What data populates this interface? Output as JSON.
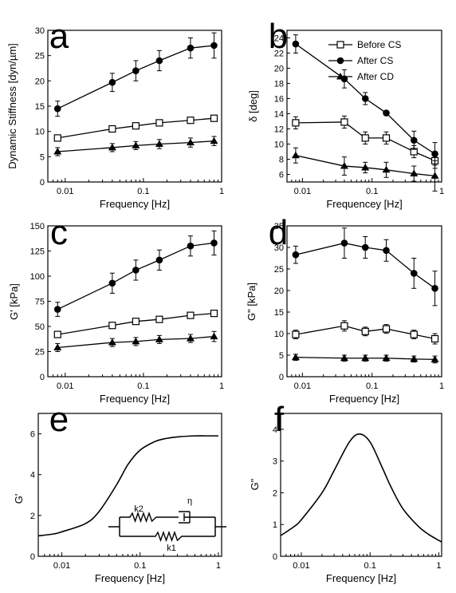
{
  "chart_data": [
    {
      "panel": "a",
      "type": "line",
      "xlabel": "Frequency [Hz]",
      "ylabel": "Dynamic Stiffness [dyn/µm]",
      "xscale": "log",
      "xlim": [
        0.006,
        1.0
      ],
      "ylim": [
        0,
        30
      ],
      "xticks": [
        0.01,
        0.1,
        1
      ],
      "xticklabels": [
        "0.01",
        "0.1",
        "1"
      ],
      "yticks": [
        0,
        5,
        10,
        15,
        20,
        25,
        30
      ],
      "yticklabels": [
        "0",
        "5",
        "10",
        "15",
        "20",
        "25",
        "30"
      ],
      "x": [
        0.008,
        0.04,
        0.08,
        0.16,
        0.4,
        0.8
      ],
      "series": [
        {
          "name": "Before CS",
          "marker": "open-square",
          "values": [
            8.7,
            10.5,
            11.1,
            11.7,
            12.2,
            12.6
          ],
          "err": [
            0.5,
            0.5,
            0.5,
            0.5,
            0.5,
            0.5
          ]
        },
        {
          "name": "After CS",
          "marker": "filled-circle",
          "values": [
            14.5,
            19.7,
            22.0,
            24.0,
            26.5,
            27.0
          ],
          "err": [
            1.5,
            1.8,
            2.0,
            2.0,
            2.0,
            2.5
          ]
        },
        {
          "name": "After CD",
          "marker": "filled-triangle",
          "values": [
            6.0,
            6.8,
            7.2,
            7.5,
            7.8,
            8.1
          ],
          "err": [
            0.8,
            0.8,
            0.8,
            0.9,
            0.9,
            0.9
          ]
        }
      ]
    },
    {
      "panel": "b",
      "type": "line",
      "xlabel": "Frequencey [Hz]",
      "ylabel": "δ [deg]",
      "xscale": "log",
      "xlim": [
        0.006,
        1.0
      ],
      "ylim": [
        5,
        25
      ],
      "xticks": [
        0.01,
        0.1,
        1
      ],
      "xticklabels": [
        "0.01",
        "0.1",
        "1"
      ],
      "yticks": [
        6,
        8,
        10,
        12,
        14,
        16,
        18,
        20,
        22,
        24
      ],
      "yticklabels": [
        "6",
        "8",
        "10",
        "12",
        "14",
        "16",
        "18",
        "20",
        "22",
        "24"
      ],
      "legend": {
        "position": "top-right",
        "entries": [
          "Before CS",
          "After CS",
          "After CD"
        ]
      },
      "x": [
        0.008,
        0.04,
        0.08,
        0.16,
        0.4,
        0.8
      ],
      "series": [
        {
          "name": "Before CS",
          "marker": "open-square",
          "values": [
            12.8,
            12.9,
            10.8,
            10.8,
            9.0,
            7.8
          ],
          "err": [
            0.8,
            0.8,
            0.8,
            0.8,
            0.8,
            1.0
          ]
        },
        {
          "name": "After CS",
          "marker": "filled-circle",
          "values": [
            23.2,
            18.6,
            16.0,
            14.1,
            10.5,
            8.7
          ],
          "err": [
            1.2,
            1.2,
            0.8,
            0.2,
            1.2,
            1.5
          ]
        },
        {
          "name": "After CD",
          "marker": "filled-triangle",
          "values": [
            8.5,
            7.1,
            6.9,
            6.6,
            6.1,
            5.8
          ],
          "err": [
            1.0,
            1.2,
            0.7,
            1.0,
            1.0,
            2.0
          ]
        }
      ]
    },
    {
      "panel": "c",
      "type": "line",
      "xlabel": "Frequency [Hz]",
      "ylabel": "G' [kPa]",
      "xscale": "log",
      "xlim": [
        0.006,
        1.0
      ],
      "ylim": [
        0,
        150
      ],
      "xticks": [
        0.01,
        0.1,
        1
      ],
      "xticklabels": [
        "0.01",
        "0.1",
        "1"
      ],
      "yticks": [
        0,
        25,
        50,
        75,
        100,
        125,
        150
      ],
      "yticklabels": [
        "0",
        "25",
        "50",
        "75",
        "100",
        "125",
        "150"
      ],
      "x": [
        0.008,
        0.04,
        0.08,
        0.16,
        0.4,
        0.8
      ],
      "series": [
        {
          "name": "Before CS",
          "marker": "open-square",
          "values": [
            42,
            51,
            55,
            57,
            61,
            63
          ],
          "err": [
            2,
            2,
            2,
            2,
            2,
            2
          ]
        },
        {
          "name": "After CS",
          "marker": "filled-circle",
          "values": [
            67,
            93,
            106,
            116,
            130,
            133
          ],
          "err": [
            7,
            10,
            10,
            10,
            10,
            12
          ]
        },
        {
          "name": "After CD",
          "marker": "filled-triangle",
          "values": [
            29,
            34,
            35,
            37,
            38,
            40
          ],
          "err": [
            4,
            4,
            4,
            4,
            4,
            5
          ]
        }
      ]
    },
    {
      "panel": "d",
      "type": "line",
      "xlabel": "Frequency [Hz]",
      "ylabel": "G\" [kPa]",
      "xscale": "log",
      "xlim": [
        0.006,
        1.0
      ],
      "ylim": [
        0,
        35
      ],
      "xticks": [
        0.01,
        0.1,
        1
      ],
      "xticklabels": [
        "0.01",
        "0.1",
        "1"
      ],
      "yticks": [
        0,
        5,
        10,
        15,
        20,
        25,
        30,
        35
      ],
      "yticklabels": [
        "0",
        "5",
        "10",
        "15",
        "20",
        "25",
        "30",
        "35"
      ],
      "x": [
        0.008,
        0.04,
        0.08,
        0.16,
        0.4,
        0.8
      ],
      "series": [
        {
          "name": "Before CS",
          "marker": "open-square",
          "values": [
            9.8,
            11.8,
            10.5,
            11.1,
            9.8,
            8.8
          ],
          "err": [
            1.0,
            1.2,
            1.0,
            1.0,
            1.0,
            1.2
          ]
        },
        {
          "name": "After CS",
          "marker": "filled-circle",
          "values": [
            28.3,
            31.0,
            30.0,
            29.3,
            24.0,
            20.5
          ],
          "err": [
            2.0,
            3.5,
            2.5,
            2.5,
            3.5,
            4.0
          ]
        },
        {
          "name": "After CD",
          "marker": "filled-triangle",
          "values": [
            4.5,
            4.3,
            4.3,
            4.3,
            4.1,
            4.0
          ],
          "err": [
            0.7,
            0.7,
            0.7,
            0.7,
            0.7,
            0.8
          ]
        }
      ]
    },
    {
      "panel": "e",
      "type": "line",
      "xlabel": "Frequency [Hz]",
      "ylabel": "G'",
      "xscale": "log",
      "xlim": [
        0.005,
        1.1
      ],
      "ylim": [
        0,
        7
      ],
      "xticks": [
        0.01,
        0.1,
        1
      ],
      "xticklabels": [
        "0.01",
        "0.1",
        "1"
      ],
      "yticks": [
        0,
        2,
        4,
        6
      ],
      "yticklabels": [
        "0",
        "2",
        "4",
        "6"
      ],
      "model_labels": {
        "spring_top": "k2",
        "dashpot": "η",
        "spring_bottom": "k1"
      },
      "series": [
        {
          "x": [
            0.005,
            0.008,
            0.01,
            0.02,
            0.03,
            0.05,
            0.07,
            0.1,
            0.15,
            0.2,
            0.3,
            0.5,
            0.7,
            1.0
          ],
          "values": [
            1.0,
            1.1,
            1.2,
            1.6,
            2.2,
            3.5,
            4.5,
            5.2,
            5.6,
            5.75,
            5.85,
            5.9,
            5.9,
            5.9
          ]
        }
      ]
    },
    {
      "panel": "f",
      "type": "line",
      "xlabel": "Frequency [Hz]",
      "ylabel": "G\"",
      "xscale": "log",
      "xlim": [
        0.005,
        1.1
      ],
      "ylim": [
        0,
        4.5
      ],
      "xticks": [
        0.01,
        0.1,
        1
      ],
      "xticklabels": [
        "0.01",
        "0.1",
        "1"
      ],
      "yticks": [
        0,
        1,
        2,
        3,
        4
      ],
      "yticklabels": [
        "0",
        "1",
        "2",
        "3",
        "4"
      ],
      "series": [
        {
          "x": [
            0.005,
            0.008,
            0.01,
            0.02,
            0.03,
            0.05,
            0.07,
            0.1,
            0.15,
            0.2,
            0.3,
            0.5,
            0.7,
            1.0,
            1.1
          ],
          "values": [
            0.65,
            0.95,
            1.15,
            2.0,
            2.7,
            3.6,
            3.85,
            3.6,
            2.8,
            2.2,
            1.5,
            0.95,
            0.7,
            0.5,
            0.45
          ]
        }
      ]
    }
  ]
}
